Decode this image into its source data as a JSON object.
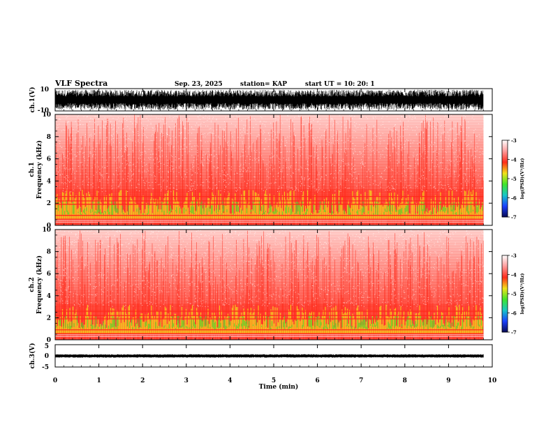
{
  "header": {
    "title": "VLF Spectra",
    "date": "Sep. 23, 2025",
    "station": "station= KAP",
    "start": "start  UT  =   10: 20: 1"
  },
  "chart_data": [
    {
      "type": "line",
      "name": "ch1-waveform",
      "ylabel": "ch.1(V)",
      "yticks": [
        "10",
        "-10"
      ],
      "ylim": [
        -10,
        10
      ],
      "xlim": [
        0,
        10
      ],
      "data_end_min": 9.8,
      "description_level": "dense noise filling most of range"
    },
    {
      "type": "heatmap",
      "name": "ch1-spectrogram",
      "ylabel": "ch.1\nFrequency  (kHz)",
      "ylabel_lines": [
        "ch.1",
        "Frequency  (kHz)"
      ],
      "yticks": [
        "0",
        "2",
        "4",
        "6",
        "8",
        "10"
      ],
      "ylim": [
        0,
        10
      ],
      "xlim": [
        0,
        10
      ],
      "data_end_min": 9.8,
      "colorbar": {
        "label": "log(PSD)(V²/Hz)",
        "ticks": [
          "-3",
          "-4",
          "-5",
          "-6",
          "-7"
        ],
        "range": [
          -7,
          -3
        ]
      }
    },
    {
      "type": "heatmap",
      "name": "ch2-spectrogram",
      "ylabel": "ch.2\nFrequency  (kHz)",
      "ylabel_lines": [
        "ch.2",
        "Frequency  (kHz)"
      ],
      "yticks": [
        "0",
        "2",
        "4",
        "6",
        "8",
        "10"
      ],
      "ylim": [
        0,
        10
      ],
      "xlim": [
        0,
        10
      ],
      "data_end_min": 9.8,
      "colorbar": {
        "label": "log(PSD)(V²/Hz)",
        "ticks": [
          "-3",
          "-4",
          "-5",
          "-6",
          "-7"
        ],
        "range": [
          -7,
          -3
        ]
      }
    },
    {
      "type": "line",
      "name": "ch3-waveform",
      "ylabel": "ch.3(V)",
      "yticks": [
        "5",
        "0",
        "-5"
      ],
      "ylim": [
        -5,
        5
      ],
      "xlim": [
        0,
        10
      ],
      "data_end_min": 9.8,
      "level_v": 0
    }
  ],
  "xaxis": {
    "label": "Time  (min)",
    "ticks": [
      "0",
      "1",
      "2",
      "3",
      "4",
      "5",
      "6",
      "7",
      "8",
      "9",
      "10"
    ]
  },
  "colors": {
    "spec_low": "#ffffff",
    "spec_red": "#ff2a1a",
    "spec_yellow": "#f2e21a",
    "spec_green": "#40e62a",
    "axis": "#000000"
  }
}
